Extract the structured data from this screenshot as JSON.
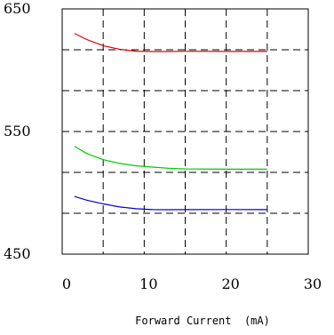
{
  "chart_data": {
    "type": "line",
    "title": "",
    "xlabel": "Forward Current  (mA)",
    "ylabel": "",
    "xlim": [
      0,
      30
    ],
    "ylim": [
      450,
      650
    ],
    "x_ticks": [
      "0",
      "10",
      "20",
      "30"
    ],
    "y_ticks": [
      "450",
      "550",
      "650"
    ],
    "grid": "dashed",
    "legend": "none",
    "series": [
      {
        "color": "#e00000",
        "x": [
          1.5,
          3,
          5,
          7,
          9,
          11,
          13,
          15,
          20,
          25
        ],
        "y": [
          630,
          625,
          620,
          617,
          615.5,
          615.2,
          615.2,
          615.4,
          615.3,
          615.3
        ]
      },
      {
        "color": "#00cc00",
        "x": [
          1.5,
          3,
          5,
          7,
          9,
          11,
          13,
          15,
          20,
          25
        ],
        "y": [
          538,
          532,
          527,
          524,
          522,
          521,
          520,
          519.5,
          519.3,
          519.3
        ]
      },
      {
        "color": "#0000cc",
        "x": [
          1.5,
          3,
          5,
          7,
          9,
          11,
          13,
          15,
          20,
          25
        ],
        "y": [
          497,
          494,
          491,
          488.5,
          487,
          486.3,
          486.2,
          486.3,
          486.4,
          486.3
        ]
      }
    ]
  }
}
